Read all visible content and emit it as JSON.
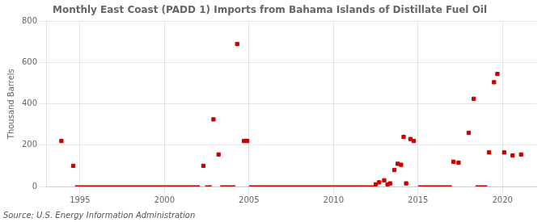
{
  "chart_data": {
    "type": "scatter",
    "title": "Monthly East Coast (PADD 1) Imports from Bahama Islands of Distillate Fuel Oil",
    "ylabel": "Thousand Barrels",
    "annotations": [
      "Source: U.S. Energy Information Administration"
    ],
    "xlim": [
      1993.0,
      2022.0
    ],
    "xticks": [
      1995,
      2000,
      2005,
      2010,
      2015,
      2020
    ],
    "ylim": [
      0,
      800
    ],
    "yticks": [
      0,
      200,
      400,
      600,
      800
    ],
    "grid": true,
    "series": [
      {
        "type": "line",
        "color": "#cc0000",
        "x": [
          1994.7,
          2002.1,
          null,
          2002.4,
          2002.8,
          null,
          2003.3,
          2004.2,
          null,
          2005.0,
          2012.4,
          null,
          2015.0,
          2017.0,
          null,
          2018.4,
          2019.1
        ],
        "values": [
          0,
          0,
          null,
          0,
          0,
          null,
          0,
          0,
          null,
          0,
          0,
          null,
          0,
          0,
          null,
          0,
          0
        ]
      },
      {
        "type": "scatter",
        "color": "#cc0000",
        "marker": "square",
        "x": [
          1993.9,
          1994.6,
          2002.3,
          2002.9,
          2003.2,
          2004.3,
          2004.7,
          2004.9,
          2012.5,
          2012.7,
          2013.0,
          2013.2,
          2013.35,
          2013.6,
          2013.8,
          2014.0,
          2014.15,
          2014.3,
          2014.55,
          2014.75,
          2017.1,
          2017.4,
          2018.0,
          2018.3,
          2019.2,
          2019.5,
          2019.7,
          2020.1,
          2020.6,
          2021.1
        ],
        "values": [
          220,
          100,
          100,
          325,
          155,
          690,
          220,
          220,
          10,
          20,
          30,
          10,
          15,
          80,
          110,
          105,
          240,
          15,
          230,
          220,
          120,
          115,
          260,
          425,
          165,
          505,
          545,
          165,
          150,
          155
        ]
      }
    ]
  }
}
